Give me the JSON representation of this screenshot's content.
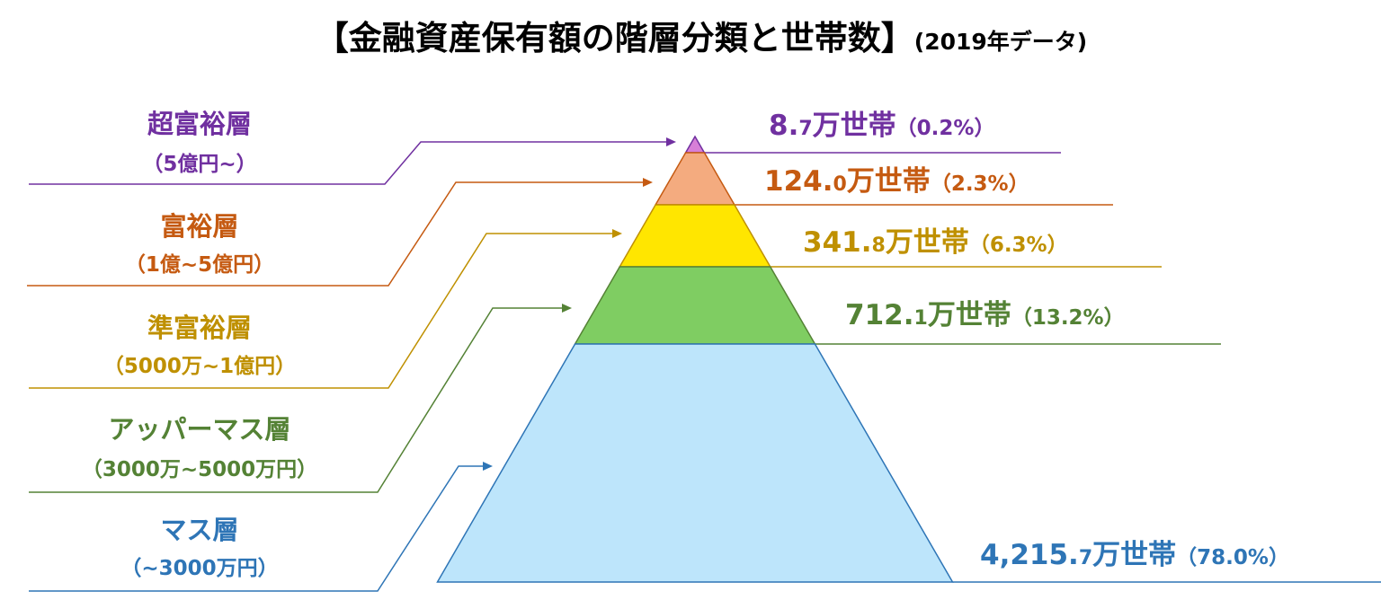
{
  "header": {
    "title": "【金融資産保有額の階層分類と世帯数】",
    "subtitle": "(2019年データ)"
  },
  "tiers": [
    {
      "name": "超富裕層",
      "range": "（5億円~）",
      "count_int": "8.",
      "count_dec": "7",
      "unit": "万世帯",
      "share": "（0.2%）"
    },
    {
      "name": "富裕層",
      "range": "（1億~5億円）",
      "count_int": "124.",
      "count_dec": "0",
      "unit": "万世帯",
      "share": "（2.3%）"
    },
    {
      "name": "準富裕層",
      "range": "（5000万~1億円）",
      "count_int": "341.",
      "count_dec": "8",
      "unit": "万世帯",
      "share": "（6.3%）"
    },
    {
      "name": "アッパーマス層",
      "range": "（3000万~5000万円）",
      "count_int": "712.",
      "count_dec": "1",
      "unit": "万世帯",
      "share": "（13.2%）"
    },
    {
      "name": "マス層",
      "range": "（~3000万円）",
      "count_int": "4,215.",
      "count_dec": "7",
      "unit": "万世帯",
      "share": "（78.0%）"
    }
  ]
}
